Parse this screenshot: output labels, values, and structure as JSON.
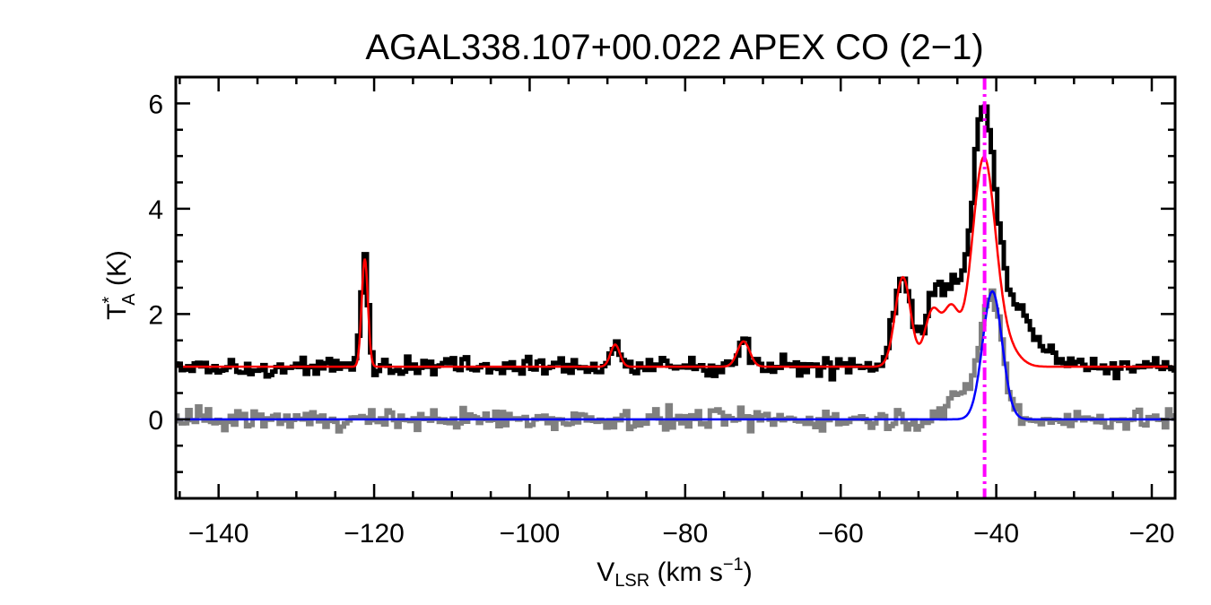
{
  "chart_data": {
    "type": "line",
    "title": "AGAL338.107+00.022  APEX CO (2−1)",
    "xlabel": {
      "main": "V",
      "sub": "LSR",
      "rest": " (km s",
      "sup": "−1",
      "end": ")"
    },
    "ylabel": {
      "main": "T",
      "sup": "*",
      "sub": "A",
      "rest": " (K)"
    },
    "xlim": [
      -145.5,
      -17.0
    ],
    "ylim": [
      -1.5,
      6.5
    ],
    "x_ticks": [
      -140,
      -120,
      -100,
      -80,
      -60,
      -40,
      -20
    ],
    "y_ticks": [
      0,
      2,
      4,
      6
    ],
    "x_tick_labels": [
      "−140",
      "−120",
      "−100",
      "−80",
      "−60",
      "−40",
      "−20"
    ],
    "y_tick_labels": [
      "0",
      "2",
      "4",
      "6"
    ],
    "marker_line": {
      "x": -41.5,
      "color": "#ff00ff",
      "style": "dash-dot"
    },
    "series": [
      {
        "style": "observed-spectrum",
        "color": "#000000",
        "baseline": 1.0,
        "noise": 0.12,
        "components": [
          {
            "center": -121.2,
            "amplitude": 2.15,
            "sigma": 0.45
          },
          {
            "center": -89.0,
            "amplitude": 0.45,
            "sigma": 0.6
          },
          {
            "center": -72.5,
            "amplitude": 0.5,
            "sigma": 0.8
          },
          {
            "center": -52.0,
            "amplitude": 1.75,
            "sigma": 1.1
          },
          {
            "center": -48.0,
            "amplitude": 1.15,
            "sigma": 1.2
          },
          {
            "center": -45.5,
            "amplitude": 0.9,
            "sigma": 1.3
          },
          {
            "center": -41.6,
            "amplitude": 3.6,
            "sigma": 1.3
          },
          {
            "center": -40.0,
            "amplitude": 1.55,
            "sigma": 3.6
          }
        ]
      },
      {
        "style": "fit",
        "color": "#ff0000",
        "baseline": 1.0,
        "components": [
          {
            "center": -121.2,
            "amplitude": 2.05,
            "sigma": 0.4
          },
          {
            "center": -89.0,
            "amplitude": 0.42,
            "sigma": 0.6
          },
          {
            "center": -72.5,
            "amplitude": 0.48,
            "sigma": 0.8
          },
          {
            "center": -52.0,
            "amplitude": 1.7,
            "sigma": 1.0
          },
          {
            "center": -48.2,
            "amplitude": 1.05,
            "sigma": 1.0
          },
          {
            "center": -45.8,
            "amplitude": 1.05,
            "sigma": 1.0
          },
          {
            "center": -41.6,
            "amplitude": 3.95,
            "sigma": 1.5
          },
          {
            "center": -38.5,
            "amplitude": 0.3,
            "sigma": 1.5
          }
        ]
      },
      {
        "style": "residual-spectrum",
        "color": "#808080",
        "baseline": 0.0,
        "noise": 0.13,
        "components": [
          {
            "center": -40.5,
            "amplitude": 2.05,
            "sigma": 1.3
          },
          {
            "center": -43.0,
            "amplitude": 0.55,
            "sigma": 2.4
          }
        ]
      },
      {
        "style": "fit",
        "color": "#0000ff",
        "baseline": 0.0,
        "components": [
          {
            "center": -40.5,
            "amplitude": 2.43,
            "sigma": 1.25
          }
        ]
      }
    ]
  }
}
